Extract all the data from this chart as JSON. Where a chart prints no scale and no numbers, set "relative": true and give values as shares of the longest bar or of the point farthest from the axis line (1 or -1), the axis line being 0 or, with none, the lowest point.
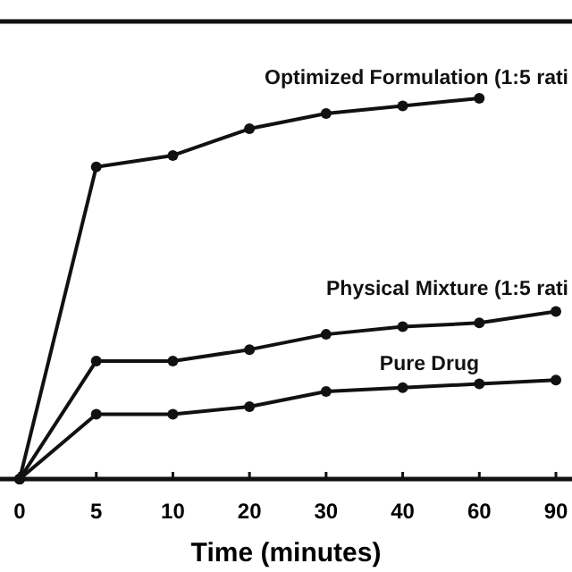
{
  "chart_data": {
    "type": "line",
    "relative": true,
    "xlabel": "Time (minutes)",
    "categories": [
      "0",
      "5",
      "10",
      "20",
      "30",
      "40",
      "60",
      "90"
    ],
    "marker": "circle",
    "legend": false,
    "series": [
      {
        "name": "Optimized Formulation (1:5 rati",
        "color": "#111111",
        "values": [
          0,
          0.82,
          0.85,
          0.92,
          0.96,
          0.98,
          1,
          null
        ]
      },
      {
        "name": "Physical Mixture (1:5 rati",
        "color": "#111111",
        "values": [
          0,
          0.31,
          0.31,
          0.34,
          0.38,
          0.4,
          0.41,
          0.44
        ]
      },
      {
        "name": "Pure Drug",
        "color": "#111111",
        "values": [
          0,
          0.17,
          0.17,
          0.19,
          0.23,
          0.24,
          0.25,
          0.26
        ]
      }
    ]
  }
}
